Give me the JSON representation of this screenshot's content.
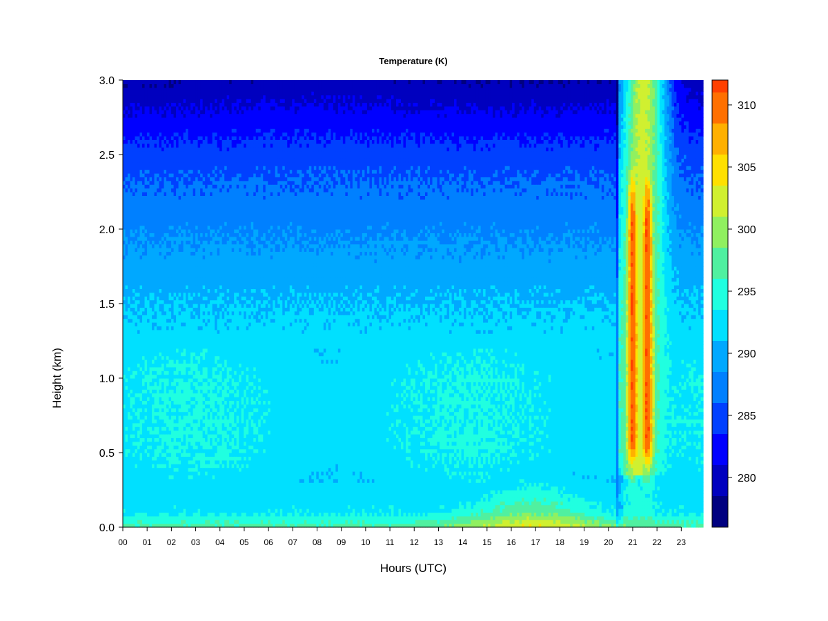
{
  "chart_data": {
    "type": "heatmap",
    "title": "Temperature (K)",
    "xlabel": "Hours (UTC)",
    "ylabel": "Height (km)",
    "x_ticks": [
      "00",
      "01",
      "02",
      "03",
      "04",
      "05",
      "06",
      "07",
      "08",
      "09",
      "10",
      "11",
      "12",
      "13",
      "14",
      "15",
      "16",
      "17",
      "18",
      "19",
      "20",
      "21",
      "22",
      "23"
    ],
    "y_ticks": [
      "0.0",
      "0.5",
      "1.0",
      "1.5",
      "2.0",
      "2.5",
      "3.0"
    ],
    "xlim": [
      0,
      23.9
    ],
    "ylim": [
      0,
      3.0
    ],
    "colorbar": {
      "label_ticks": [
        "280",
        "285",
        "290",
        "295",
        "300",
        "305",
        "310"
      ],
      "tick_values": [
        280,
        285,
        290,
        295,
        300,
        305,
        310
      ],
      "range": [
        276,
        312
      ],
      "step": 2.5,
      "colors": [
        "#000080",
        "#0000bf",
        "#0000ff",
        "#0040ff",
        "#0080ff",
        "#00a8ff",
        "#00e0ff",
        "#20ffe0",
        "#50f0a0",
        "#90f060",
        "#d0f030",
        "#ffe000",
        "#ffb000",
        "#ff7000",
        "#ff4000",
        "#ff0000",
        "#c00000",
        "#800000"
      ]
    },
    "profile_model": {
      "description_levels_km": [
        0.0,
        0.1,
        0.3,
        0.5,
        1.0,
        1.5,
        2.0,
        2.5,
        3.0
      ],
      "background_K": [
        297,
        293,
        292,
        293,
        293,
        291,
        288,
        285,
        280
      ],
      "surface_warm_peak_hour": 16.8,
      "surface_warm_peak_K": 304,
      "plume_start_hour": 20.4,
      "plume_peak_hours": [
        21.0,
        21.6
      ],
      "plume_peak_K": 311,
      "plume_core_km": [
        0.6,
        2.0
      ]
    }
  }
}
